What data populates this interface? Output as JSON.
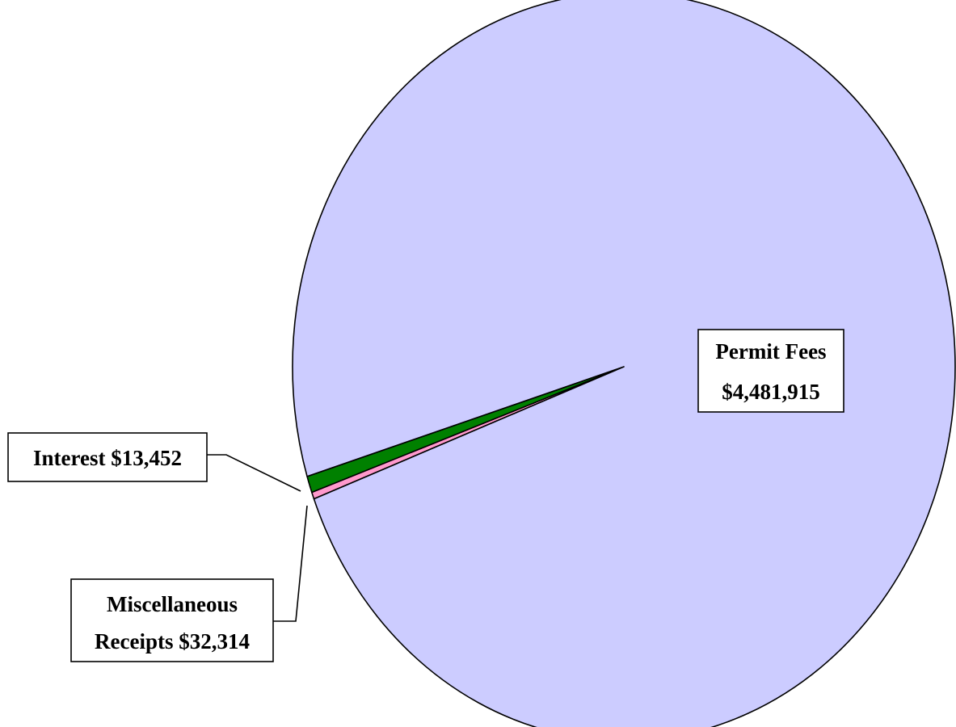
{
  "chart_data": {
    "type": "pie",
    "title": "",
    "slices": [
      {
        "name": "Permit Fees",
        "value": 4481915,
        "label_lines": [
          "Permit Fees",
          "$4,481,915"
        ],
        "color": "#ccccff"
      },
      {
        "name": "Interest",
        "value": 13452,
        "label_lines": [
          "Interest $13,452"
        ],
        "color": "#ff99cc"
      },
      {
        "name": "Miscellaneous Receipts",
        "value": 32314,
        "label_lines": [
          "Miscellaneous",
          "Receipts $32,314"
        ],
        "color": "#008000"
      }
    ],
    "legend": "none"
  }
}
